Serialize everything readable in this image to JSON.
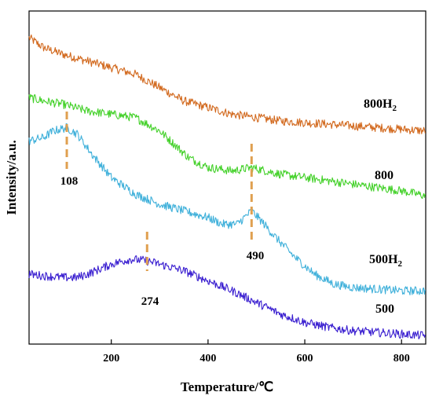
{
  "chart_data": {
    "type": "line",
    "xlabel": "Temperature/℃",
    "ylabel": "Intensity/a.u.",
    "xlim": [
      30,
      850
    ],
    "ylim": [
      0,
      100
    ],
    "y_tick_labels": "none",
    "x_ticks": [
      200,
      400,
      600,
      800
    ],
    "x_tick_labels": [
      "200",
      "400",
      "600",
      "800"
    ],
    "grid": false,
    "legend": "labels placed at right end of each curve",
    "series": [
      {
        "name": "800H2",
        "label_main": "800H",
        "label_sub": "2",
        "color": "#d2691e",
        "x": [
          30,
          60,
          100,
          150,
          200,
          250,
          300,
          350,
          400,
          450,
          500,
          550,
          600,
          650,
          700,
          750,
          800,
          850
        ],
        "y": [
          92,
          89,
          87,
          85,
          83,
          81,
          77,
          73,
          71,
          69,
          68,
          67,
          66.5,
          66,
          65.5,
          65,
          64.5,
          64
        ]
      },
      {
        "name": "800",
        "label_main": "800",
        "label_sub": "",
        "color": "#44d12a",
        "x": [
          30,
          60,
          100,
          150,
          200,
          250,
          300,
          330,
          360,
          400,
          450,
          490,
          520,
          550,
          600,
          650,
          700,
          750,
          800,
          850
        ],
        "y": [
          74,
          73,
          72,
          70,
          69,
          68,
          64,
          60,
          56,
          53,
          52,
          53,
          52,
          51,
          50,
          49,
          48,
          47,
          46,
          44.5
        ]
      },
      {
        "name": "500H2",
        "label_main": "500H",
        "label_sub": "2",
        "color": "#3fb0da",
        "x": [
          30,
          60,
          80,
          108,
          130,
          160,
          200,
          250,
          300,
          350,
          400,
          430,
          460,
          490,
          510,
          540,
          580,
          620,
          660,
          700,
          750,
          800,
          850
        ],
        "y": [
          61,
          62,
          64,
          65,
          63,
          57,
          50,
          45,
          42,
          40,
          38,
          36,
          36,
          40,
          37,
          32,
          26,
          21,
          18,
          17,
          16.5,
          16,
          16
        ]
      },
      {
        "name": "500",
        "label_main": "500",
        "label_sub": "",
        "color": "#3a1fd0",
        "x": [
          30,
          60,
          100,
          130,
          160,
          200,
          240,
          274,
          300,
          350,
          400,
          450,
          500,
          550,
          600,
          650,
          700,
          750,
          800,
          850
        ],
        "y": [
          21,
          20.5,
          20,
          20,
          21.5,
          24,
          25.5,
          25,
          24,
          22,
          19,
          16,
          12.5,
          9,
          6.5,
          5,
          4,
          3.5,
          3,
          2.5
        ]
      }
    ],
    "annotations": [
      {
        "text": "108",
        "x": 108
      },
      {
        "text": "274",
        "x": 274
      },
      {
        "text": "490",
        "x": 490
      }
    ],
    "annotation_color": "#e0a050"
  }
}
